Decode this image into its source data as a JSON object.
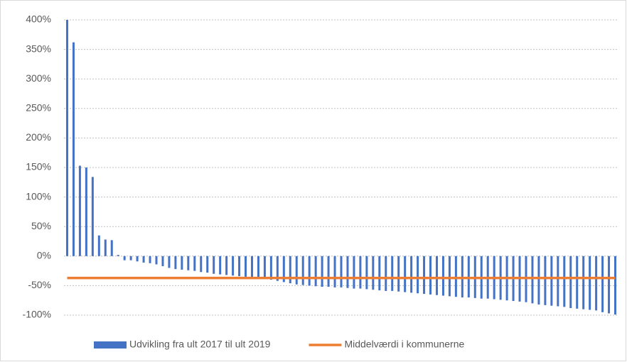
{
  "chart_data": {
    "type": "bar",
    "categories": [
      null,
      null,
      null,
      null,
      null,
      null,
      null,
      null,
      null,
      null,
      null,
      null,
      null,
      null,
      null,
      null,
      null,
      null,
      null,
      null,
      null,
      null,
      null,
      null,
      null,
      null,
      null,
      null,
      null,
      null,
      null,
      null,
      null,
      null,
      null,
      null,
      null,
      null,
      null,
      null,
      null,
      null,
      null,
      null,
      null,
      null,
      null,
      null,
      null,
      null,
      null,
      null,
      null,
      null,
      null,
      null,
      null,
      null,
      null,
      null,
      null,
      null,
      null,
      null,
      null,
      null,
      null,
      null,
      null,
      null,
      null,
      null,
      null,
      null,
      null,
      null,
      null,
      null,
      null,
      null,
      null,
      null,
      null,
      null,
      null,
      null,
      null
    ],
    "series": [
      {
        "name": "Udvikling fra ult 2017 til ult 2019",
        "type": "bar",
        "color": "#4472c4",
        "values": [
          400,
          362,
          153,
          150,
          134,
          35,
          28,
          27,
          2,
          -7,
          -7,
          -9,
          -11,
          -12,
          -14,
          -17,
          -20,
          -22,
          -23,
          -24,
          -25,
          -27,
          -28,
          -30,
          -31,
          -32,
          -33,
          -34,
          -35,
          -36,
          -37,
          -38,
          -40,
          -42,
          -44,
          -46,
          -48,
          -49,
          -50,
          -51,
          -52,
          -52,
          -53,
          -53,
          -54,
          -55,
          -55,
          -56,
          -57,
          -58,
          -59,
          -59,
          -60,
          -61,
          -62,
          -63,
          -64,
          -65,
          -66,
          -67,
          -68,
          -69,
          -70,
          -70,
          -71,
          -72,
          -72,
          -73,
          -74,
          -75,
          -76,
          -77,
          -78,
          -80,
          -82,
          -83,
          -84,
          -85,
          -86,
          -88,
          -89,
          -90,
          -91,
          -92,
          -95,
          -97,
          -99
        ]
      },
      {
        "name": "Middelværdi i kommunerne",
        "type": "line",
        "color": "#ed7d31",
        "values": [
          -37,
          -37,
          -37,
          -37,
          -37,
          -37,
          -37,
          -37,
          -37,
          -37,
          -37,
          -37,
          -37,
          -37,
          -37,
          -37,
          -37,
          -37,
          -37,
          -37,
          -37,
          -37,
          -37,
          -37,
          -37,
          -37,
          -37,
          -37,
          -37,
          -37,
          -37,
          -37,
          -37,
          -37,
          -37,
          -37,
          -37,
          -37,
          -37,
          -37,
          -37,
          -37,
          -37,
          -37,
          -37,
          -37,
          -37,
          -37,
          -37,
          -37,
          -37,
          -37,
          -37,
          -37,
          -37,
          -37,
          -37,
          -37,
          -37,
          -37,
          -37,
          -37,
          -37,
          -37,
          -37,
          -37,
          -37,
          -37,
          -37,
          -37,
          -37,
          -37,
          -37,
          -37,
          -37,
          -37,
          -37,
          -37,
          -37,
          -37,
          -37,
          -37,
          -37,
          -37,
          -37,
          -37,
          -37
        ]
      }
    ],
    "ylim": [
      -100,
      400
    ],
    "yticks": [
      {
        "value": -100,
        "label": "-100%"
      },
      {
        "value": -50,
        "label": "-50%"
      },
      {
        "value": 0,
        "label": "0%"
      },
      {
        "value": 50,
        "label": "50%"
      },
      {
        "value": 100,
        "label": "100%"
      },
      {
        "value": 150,
        "label": "150%"
      },
      {
        "value": 200,
        "label": "200%"
      },
      {
        "value": 250,
        "label": "250%"
      },
      {
        "value": 300,
        "label": "300%"
      },
      {
        "value": 350,
        "label": "350%"
      },
      {
        "value": 400,
        "label": "400%"
      }
    ],
    "grid": true,
    "legend": "bottom"
  }
}
